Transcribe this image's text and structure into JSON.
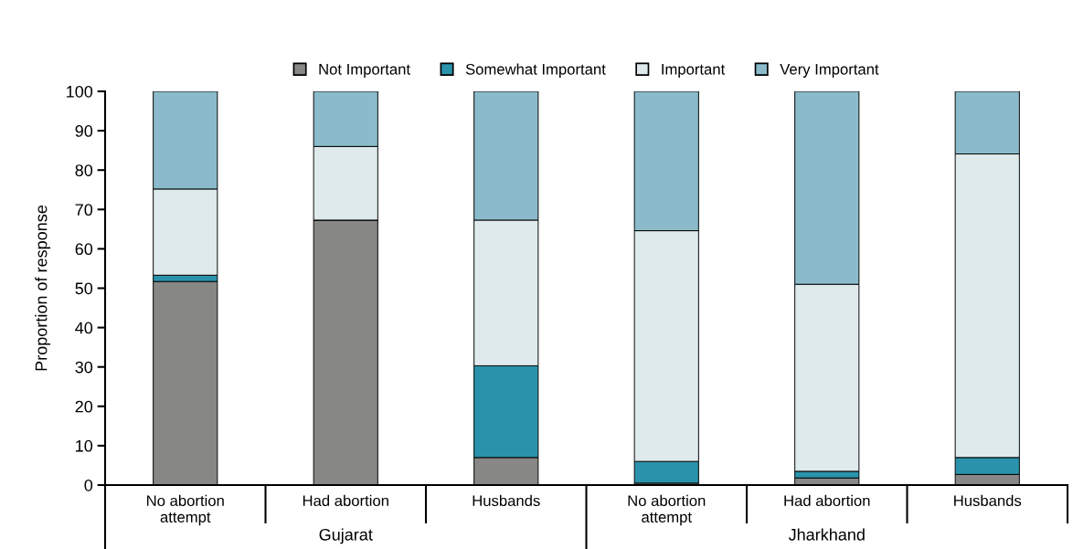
{
  "chart_data": {
    "type": "bar",
    "stacked": true,
    "ylabel": "Proportion of response",
    "categories": [
      "No abortion\nattempt",
      "Had abortion",
      "Husbands",
      "No abortion\nattempt",
      "Had abortion",
      "Husbands"
    ],
    "series": [
      {
        "name": "Not Important",
        "color": "#878886",
        "values": [
          51.7,
          67.3,
          7.0,
          0.5,
          1.8,
          2.7
        ]
      },
      {
        "name": "Somewhat Important",
        "color": "#2a93ab",
        "values": [
          1.6,
          0,
          23.3,
          5.5,
          1.7,
          4.3
        ]
      },
      {
        "name": "Important",
        "color": "#dfeaec",
        "values": [
          21.9,
          18.7,
          37.0,
          58.6,
          47.5,
          77.1
        ]
      },
      {
        "name": "Very Important",
        "color": "#8bbbca",
        "values": [
          24.8,
          14.0,
          32.7,
          35.4,
          49.0,
          15.9
        ]
      }
    ],
    "annotations": [
      "Gujarat",
      "Jharkhand"
    ],
    "ylim": [
      0,
      100
    ],
    "yticks": [
      0,
      10,
      20,
      30,
      40,
      50,
      60,
      70,
      80,
      90,
      100
    ],
    "grid": false,
    "legend": "top"
  }
}
